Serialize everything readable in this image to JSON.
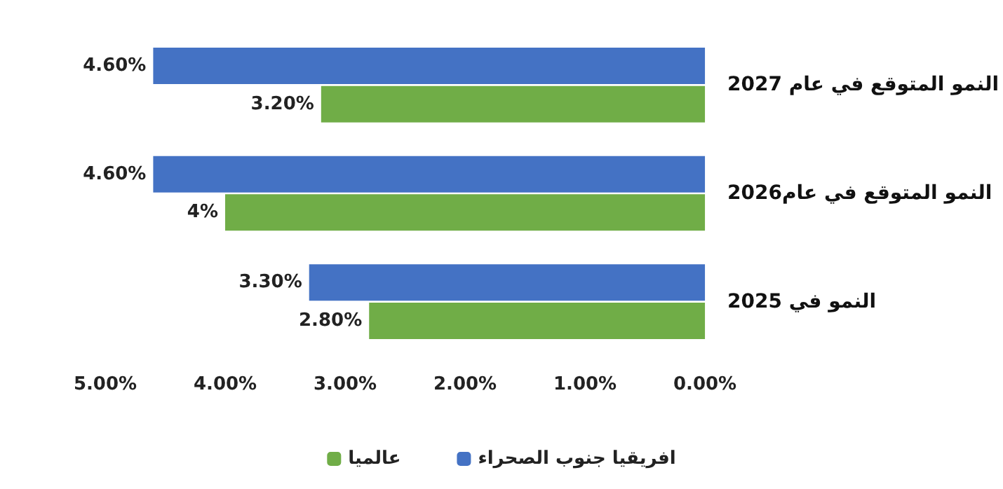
{
  "chart_data": {
    "type": "bar",
    "orientation": "horizontal",
    "categories": [
      "النمو المتوقع في عام 2027",
      "النمو المتوقع في عام2026",
      "النمو في 2025"
    ],
    "series": [
      {
        "name": "افريقيا جنوب الصحراء",
        "color": "#4472c4",
        "values": [
          4.6,
          4.6,
          3.3
        ],
        "value_labels": [
          "4.60%",
          "4.60%",
          "3.30%"
        ]
      },
      {
        "name": "عالميا",
        "color": "#70ad47",
        "values": [
          3.2,
          4,
          2.8
        ],
        "value_labels": [
          "3.20%",
          "4%",
          "2.80%"
        ]
      }
    ],
    "xlim": [
      5,
      0
    ],
    "xticks": [
      {
        "value": 5,
        "label": "5.00%"
      },
      {
        "value": 4,
        "label": "4.00%"
      },
      {
        "value": 3,
        "label": "3.00%"
      },
      {
        "value": 2,
        "label": "2.00%"
      },
      {
        "value": 1,
        "label": "1.00%"
      },
      {
        "value": 0,
        "label": "0.00%"
      }
    ],
    "grid": false,
    "legend": "bottom"
  }
}
